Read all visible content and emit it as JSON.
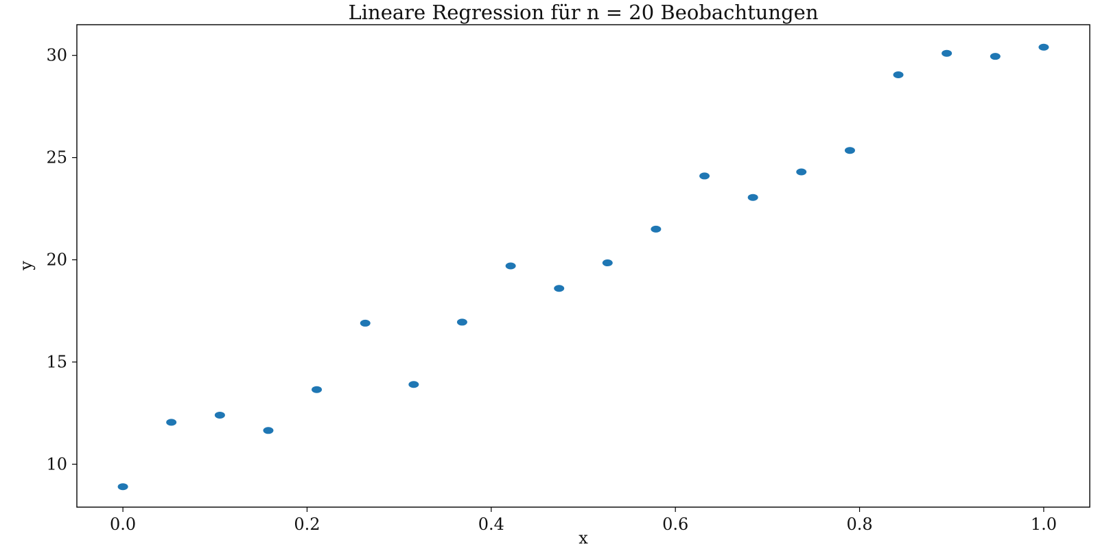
{
  "chart_data": {
    "type": "scatter",
    "title": "Lineare Regression für n = 20 Beobachtungen",
    "xlabel": "x",
    "ylabel": "y",
    "xlim": [
      -0.05,
      1.05
    ],
    "ylim": [
      7.9,
      31.5
    ],
    "xticks": [
      0.0,
      0.2,
      0.4,
      0.6,
      0.8,
      1.0
    ],
    "xtick_labels": [
      "0.0",
      "0.2",
      "0.4",
      "0.6",
      "0.8",
      "1.0"
    ],
    "yticks": [
      10,
      15,
      20,
      25,
      30
    ],
    "ytick_labels": [
      "10",
      "15",
      "20",
      "25",
      "30"
    ],
    "grid": false,
    "legend": "none",
    "marker_color": "#1f77b4",
    "x": [
      0.0,
      0.0526,
      0.1053,
      0.1579,
      0.2105,
      0.2632,
      0.3158,
      0.3684,
      0.4211,
      0.4737,
      0.5263,
      0.5789,
      0.6316,
      0.6842,
      0.7368,
      0.7895,
      0.8421,
      0.8947,
      0.9474,
      1.0
    ],
    "y": [
      8.9,
      12.05,
      12.4,
      11.65,
      13.65,
      16.9,
      13.9,
      16.95,
      19.7,
      18.6,
      19.85,
      21.5,
      24.1,
      23.05,
      24.3,
      25.35,
      29.05,
      30.1,
      29.95,
      30.4
    ]
  }
}
